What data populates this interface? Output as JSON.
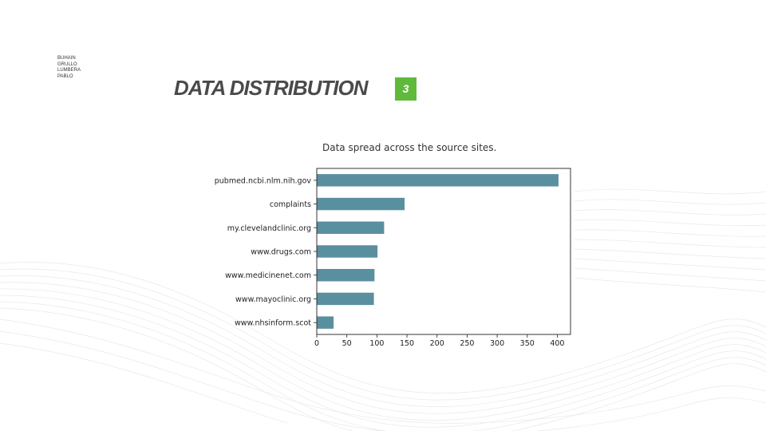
{
  "authors": [
    "BUHAIN",
    "GRULLO",
    "LUMBERA",
    "PABLO"
  ],
  "slide": {
    "title": "DATA DISTRIBUTION",
    "page_number": "3"
  },
  "caption": "Data spread across the source sites.",
  "colors": {
    "bar": "#5a8fa0",
    "badge": "#5fba3c",
    "title": "#4a4a4a"
  },
  "chart_data": {
    "type": "bar",
    "orientation": "horizontal",
    "categories": [
      "pubmed.ncbi.nlm.nih.gov",
      "complaints",
      "my.clevelandclinic.org",
      "www.drugs.com",
      "www.medicinenet.com",
      "www.mayoclinic.org",
      "www.nhsinform.scot"
    ],
    "values": [
      402,
      146,
      112,
      101,
      96,
      95,
      28
    ],
    "xlim": [
      0,
      422
    ],
    "xticks": [
      "0",
      "50",
      "100",
      "150",
      "200",
      "250",
      "300",
      "350",
      "400"
    ],
    "title": "",
    "xlabel": "",
    "ylabel": "",
    "grid": false
  }
}
